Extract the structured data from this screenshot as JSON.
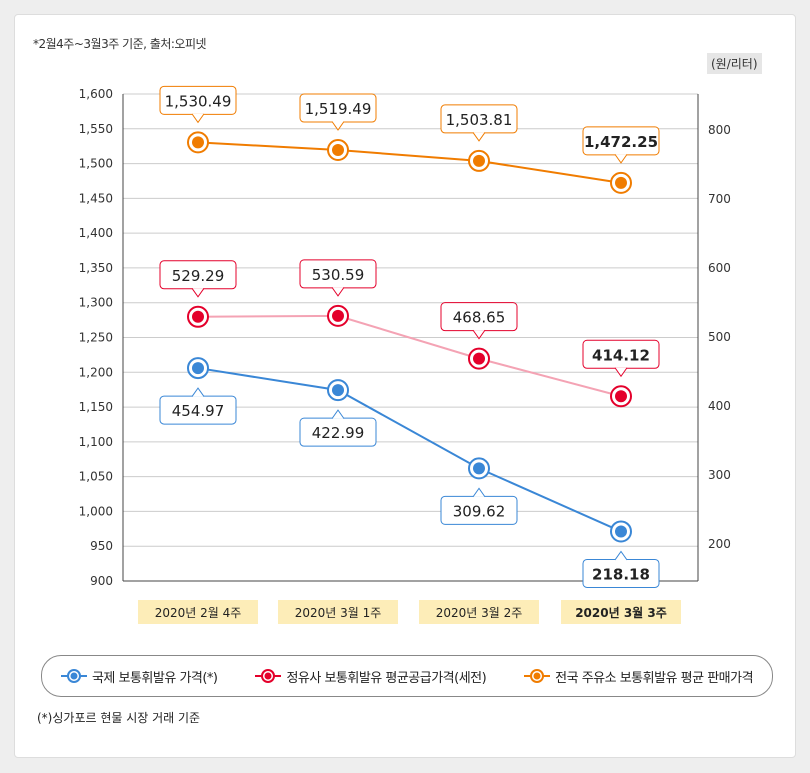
{
  "note": "*2월4주~3월3주 기준, 출처:오피넷",
  "unit": "(원/리터)",
  "footnote": "(*)싱가포르 현물 시장 거래 기준",
  "chart_data": {
    "type": "line",
    "categories": [
      "2020년 2월 4주",
      "2020년 3월 1주",
      "2020년 3월 2주",
      "2020년 3월 3주"
    ],
    "left_axis": {
      "ylim": [
        900,
        1600
      ],
      "ticks": [
        900,
        950,
        1000,
        1050,
        1100,
        1150,
        1200,
        1250,
        1300,
        1350,
        1400,
        1450,
        1500,
        1550,
        1600
      ],
      "tick_labels": [
        "900",
        "950",
        "1,000",
        "1,050",
        "1,100",
        "1,150",
        "1,200",
        "1,250",
        "1,300",
        "1,350",
        "1,400",
        "1,450",
        "1,500",
        "1,550",
        "1,600"
      ]
    },
    "right_axis": {
      "ylim": [
        150,
        800
      ],
      "ticks": [
        200,
        300,
        400,
        500,
        600,
        700,
        800
      ],
      "tick_labels": [
        "200",
        "300",
        "400",
        "500",
        "600",
        "700",
        "800"
      ]
    },
    "grid": true,
    "legend": "bottom",
    "series": [
      {
        "name": "국제 보통휘발유 가격(*)",
        "axis": "right",
        "color": "#3a87d6",
        "values": [
          454.97,
          422.99,
          309.62,
          218.18
        ],
        "labels": [
          "454.97",
          "422.99",
          "309.62",
          "218.18"
        ],
        "label_pos": "below"
      },
      {
        "name": "정유사 보통휘발유 평균공급가격(세전)",
        "axis": "right",
        "color": "#e4002b",
        "line_color": "#f4a3b4",
        "values": [
          529.29,
          530.59,
          468.65,
          414.12
        ],
        "labels": [
          "529.29",
          "530.59",
          "468.65",
          "414.12"
        ],
        "label_pos": "above"
      },
      {
        "name": "전국 주유소 보통휘발유 평균 판매가격",
        "axis": "left",
        "color": "#f07c00",
        "values": [
          1530.49,
          1519.49,
          1503.81,
          1472.25
        ],
        "labels": [
          "1,530.49",
          "1,519.49",
          "1,503.81",
          "1,472.25"
        ],
        "label_pos": "above"
      }
    ]
  }
}
